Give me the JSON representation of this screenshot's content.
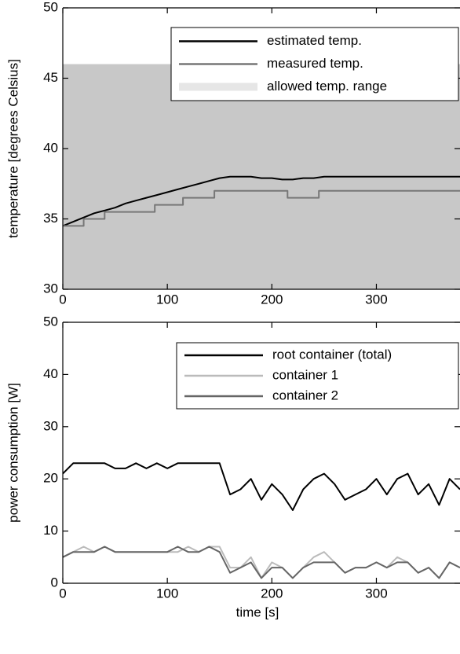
{
  "chart_data": [
    {
      "type": "line",
      "ylabel": "temperature [degrees Celsius]",
      "xlim": [
        0,
        380
      ],
      "ylim": [
        30,
        50
      ],
      "xticks": [
        0,
        100,
        200,
        300
      ],
      "yticks": [
        30,
        35,
        40,
        45,
        50
      ],
      "x": [
        0,
        10,
        20,
        30,
        40,
        50,
        60,
        70,
        80,
        90,
        100,
        110,
        120,
        130,
        140,
        150,
        160,
        170,
        180,
        190,
        200,
        210,
        220,
        230,
        240,
        250,
        260,
        270,
        280,
        290,
        300,
        310,
        320,
        330,
        340,
        350,
        360,
        370,
        380
      ],
      "bands": [
        {
          "name": "allowed temp. range",
          "color": "#c8c8c8",
          "legend_color": "#e6e6e6",
          "lower": 30,
          "upper": 46
        }
      ],
      "series": [
        {
          "name": "estimated temp.",
          "color": "#000000",
          "values": [
            34.5,
            34.8,
            35.1,
            35.4,
            35.6,
            35.8,
            36.1,
            36.3,
            36.5,
            36.7,
            36.9,
            37.1,
            37.3,
            37.5,
            37.7,
            37.9,
            38.0,
            38.0,
            38.0,
            37.9,
            37.9,
            37.8,
            37.8,
            37.9,
            37.9,
            38.0,
            38.0,
            38.0,
            38.0,
            38.0,
            38.0,
            38.0,
            38.0,
            38.0,
            38.0,
            38.0,
            38.0,
            38.0,
            38.0
          ]
        },
        {
          "name": "measured temp.",
          "color": "#777777",
          "x": [
            0,
            20,
            20,
            40,
            40,
            88,
            88,
            115,
            115,
            145,
            145,
            215,
            215,
            245,
            245,
            380
          ],
          "values": [
            34.5,
            34.5,
            35,
            35,
            35.5,
            35.5,
            36,
            36,
            36.5,
            36.5,
            37,
            37,
            36.5,
            36.5,
            37,
            37
          ]
        }
      ]
    },
    {
      "type": "line",
      "xlabel": "time [s]",
      "ylabel": "power consumption [W]",
      "xlim": [
        0,
        380
      ],
      "ylim": [
        0,
        50
      ],
      "xticks": [
        0,
        100,
        200,
        300
      ],
      "yticks": [
        0,
        10,
        20,
        30,
        40,
        50
      ],
      "x": [
        0,
        10,
        20,
        30,
        40,
        50,
        60,
        70,
        80,
        90,
        100,
        110,
        120,
        130,
        140,
        150,
        160,
        170,
        180,
        190,
        200,
        210,
        220,
        230,
        240,
        250,
        260,
        270,
        280,
        290,
        300,
        310,
        320,
        330,
        340,
        350,
        360,
        370,
        380
      ],
      "series": [
        {
          "name": "root container (total)",
          "color": "#000000",
          "values": [
            21,
            23,
            23,
            23,
            23,
            22,
            22,
            23,
            22,
            23,
            22,
            23,
            23,
            23,
            23,
            23,
            17,
            18,
            20,
            16,
            19,
            17,
            14,
            18,
            20,
            21,
            19,
            16,
            17,
            18,
            20,
            17,
            20,
            21,
            17,
            19,
            15,
            20,
            18
          ]
        },
        {
          "name": "container 1",
          "color": "#bbbbbb",
          "values": [
            5,
            6,
            7,
            6,
            7,
            6,
            6,
            6,
            6,
            6,
            6,
            6,
            7,
            6,
            7,
            7,
            3,
            3,
            5,
            1,
            4,
            3,
            1,
            3,
            5,
            6,
            4,
            2,
            3,
            3,
            4,
            3,
            5,
            4,
            2,
            3,
            1,
            4,
            3
          ]
        },
        {
          "name": "container 2",
          "color": "#666666",
          "values": [
            5,
            6,
            6,
            6,
            7,
            6,
            6,
            6,
            6,
            6,
            6,
            7,
            6,
            6,
            7,
            6,
            2,
            3,
            4,
            1,
            3,
            3,
            1,
            3,
            4,
            4,
            4,
            2,
            3,
            3,
            4,
            3,
            4,
            4,
            2,
            3,
            1,
            4,
            3
          ]
        }
      ]
    }
  ]
}
